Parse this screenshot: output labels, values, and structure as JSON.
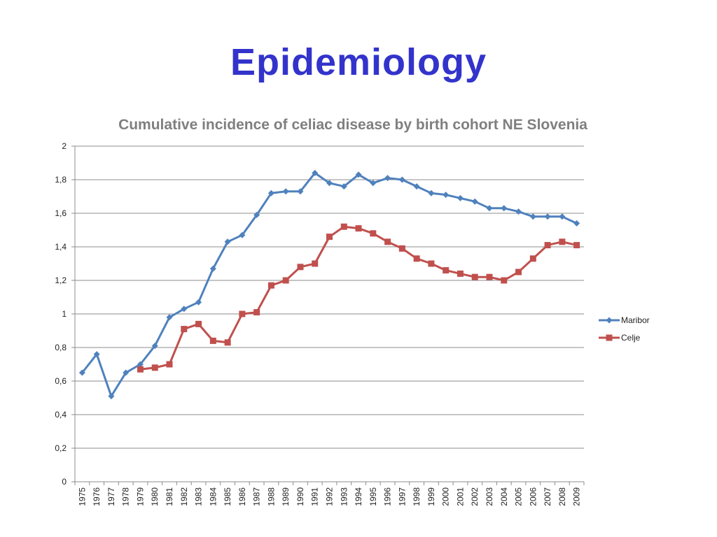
{
  "slide": {
    "title": "Epidemiology",
    "title_color": "#3333CC"
  },
  "chart_data": {
    "type": "line",
    "title": "Cumulative incidence of celiac disease by birth cohort NE Slovenia",
    "title_color": "#7F7F7F",
    "xlabel": "",
    "ylabel": "",
    "ylim": [
      0,
      2
    ],
    "y_ticks": [
      "0",
      "0,2",
      "0,4",
      "0,6",
      "0,8",
      "1",
      "1,2",
      "1,4",
      "1,6",
      "1,8",
      "2"
    ],
    "grid": true,
    "legend_position": "right",
    "categories": [
      "1975",
      "1976",
      "1977",
      "1978",
      "1979",
      "1980",
      "1981",
      "1982",
      "1983",
      "1984",
      "1985",
      "1986",
      "1987",
      "1988",
      "1989",
      "1990",
      "1991",
      "1992",
      "1993",
      "1994",
      "1995",
      "1996",
      "1997",
      "1998",
      "1999",
      "2000",
      "2001",
      "2002",
      "2003",
      "2004",
      "2005",
      "2006",
      "2007",
      "2008",
      "2009"
    ],
    "series": [
      {
        "name": "Maribor",
        "color": "#4F81BD",
        "marker": "diamond",
        "values": [
          0.65,
          0.76,
          0.51,
          0.65,
          0.7,
          0.81,
          0.98,
          1.03,
          1.07,
          1.27,
          1.43,
          1.47,
          1.59,
          1.72,
          1.73,
          1.73,
          1.84,
          1.78,
          1.76,
          1.83,
          1.78,
          1.81,
          1.8,
          1.76,
          1.72,
          1.71,
          1.69,
          1.67,
          1.63,
          1.63,
          1.61,
          1.58,
          1.58,
          1.58,
          1.54
        ]
      },
      {
        "name": "Celje",
        "color": "#C0504D",
        "marker": "square",
        "values": [
          null,
          null,
          null,
          null,
          0.67,
          0.68,
          0.7,
          0.91,
          0.94,
          0.84,
          0.83,
          1.0,
          1.01,
          1.17,
          1.2,
          1.28,
          1.3,
          1.46,
          1.52,
          1.51,
          1.48,
          1.43,
          1.39,
          1.33,
          1.3,
          1.26,
          1.24,
          1.22,
          1.22,
          1.2,
          1.25,
          1.33,
          1.41,
          1.43,
          1.41
        ]
      }
    ]
  }
}
